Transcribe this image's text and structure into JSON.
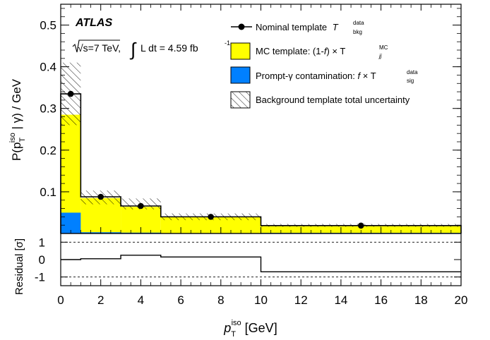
{
  "chart_data": {
    "type": "histogram",
    "experiment": "ATLAS",
    "energy_text": "√s=7 TeV,",
    "lumi_text": "L dt = 4.59 fb",
    "lumi_sup": "-1",
    "main_panel": {
      "ylabel_prefix": "P(p",
      "ylabel_sup": "iso",
      "ylabel_sub": "T",
      "ylabel_suffix": " | γ) / GeV",
      "ylim": [
        0.0,
        0.55
      ],
      "yticks": [
        "0.1",
        "0.2",
        "0.3",
        "0.4",
        "0.5"
      ],
      "bin_edges": [
        0,
        1,
        3,
        5,
        10,
        20
      ],
      "nominal": {
        "name": "Nominal template",
        "name_symbol": "T",
        "name_sup": "data",
        "name_sub": "bkg",
        "x": [
          0.5,
          2,
          4,
          7.5,
          15
        ],
        "y": [
          0.335,
          0.088,
          0.066,
          0.04,
          0.019
        ]
      },
      "mc_template": {
        "name_prefix": "MC template: (1-",
        "name_f": "f",
        "name_middle": ") × T",
        "name_sup": "MC",
        "name_sub": "jj",
        "color": "#ffff00",
        "values": [
          0.285,
          0.085,
          0.064,
          0.039,
          0.0175
        ]
      },
      "prompt_contamination": {
        "name_prefix": "Prompt-γ contamination: ",
        "name_f": "f",
        "name_middle": " × T",
        "name_sup": "data",
        "name_sub": "sig",
        "color": "#0080ff",
        "values": [
          0.05,
          0.003,
          0.002,
          0.001,
          0.0015
        ]
      },
      "uncertainty": {
        "name": "Background template total uncertainty",
        "low": [
          0.26,
          0.07,
          0.058,
          0.032,
          0.016
        ],
        "high": [
          0.41,
          0.103,
          0.084,
          0.048,
          0.023
        ]
      }
    },
    "residual_panel": {
      "ylabel_text": "Residual [",
      "ylabel_sigma": "σ",
      "ylabel_close": "]",
      "ylim": [
        -1.5,
        1.5
      ],
      "yticks": [
        "-1",
        "0",
        "1"
      ],
      "dashed_lines": [
        -1,
        1
      ],
      "bin_edges": [
        0,
        1,
        3,
        5,
        10,
        20
      ],
      "values": [
        0.0,
        0.05,
        0.25,
        0.15,
        -0.7
      ]
    },
    "x_axis": {
      "label_main": "p",
      "label_sup": "iso",
      "label_sub": "T",
      "label_unit": " [GeV]",
      "xlim": [
        0,
        20
      ],
      "ticks": [
        "0",
        "2",
        "4",
        "6",
        "8",
        "10",
        "12",
        "14",
        "16",
        "18",
        "20"
      ]
    }
  }
}
